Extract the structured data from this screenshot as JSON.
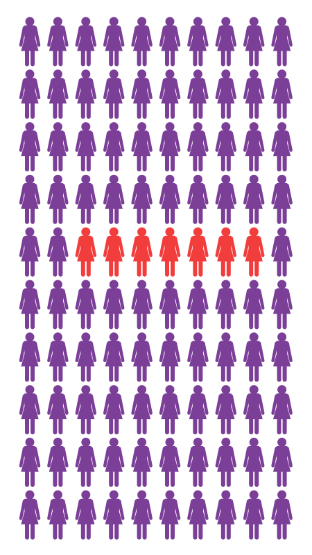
{
  "chart_data": {
    "type": "pictogram",
    "values": [
      42,
      7,
      51
    ],
    "colors": [
      "#7b3f98",
      "#f23d3d",
      "#7b3f98"
    ]
  }
}
